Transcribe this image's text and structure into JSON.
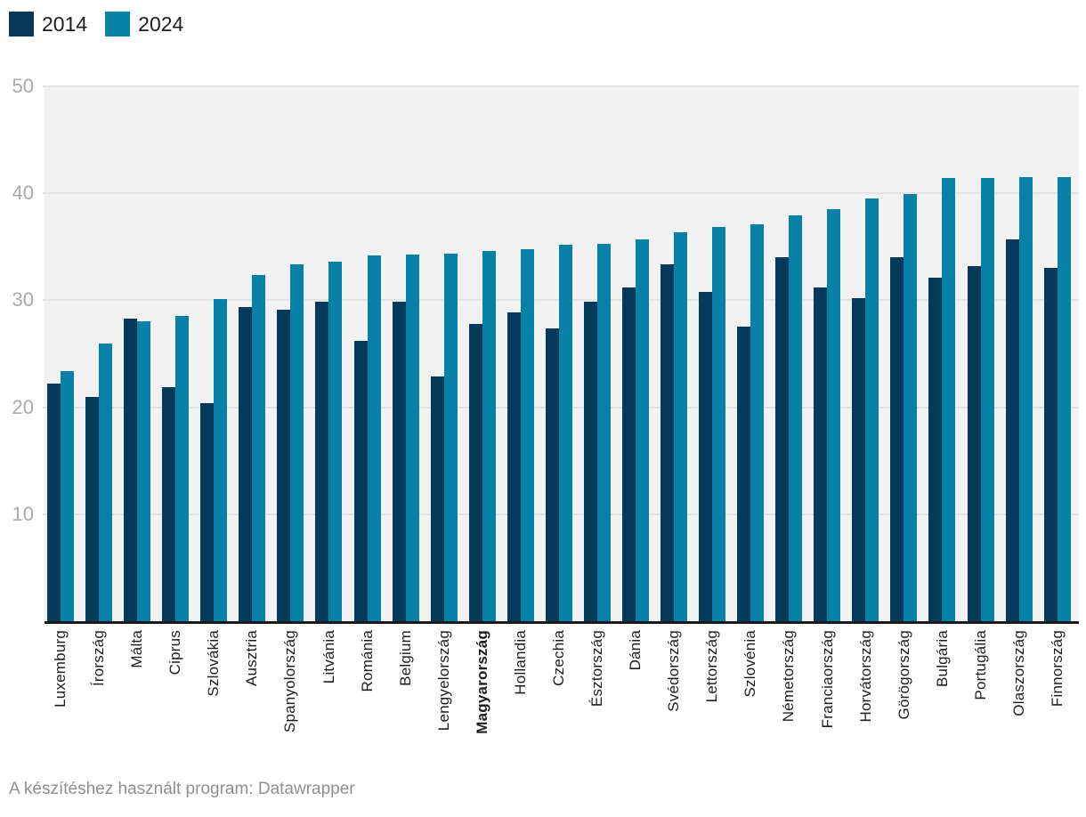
{
  "chart_data": {
    "type": "bar",
    "title": "",
    "xlabel": "",
    "ylabel": "",
    "ylim": [
      0,
      50
    ],
    "yticks": [
      10,
      20,
      30,
      40,
      50
    ],
    "grid": true,
    "legend_position": "top-left",
    "highlighted_category": "Magyarország",
    "categories": [
      "Luxemburg",
      "Írország",
      "Málta",
      "Ciprus",
      "Szlovákia",
      "Ausztria",
      "Spanyolország",
      "Litvánia",
      "Románia",
      "Belgium",
      "Lengyelország",
      "Magyarország",
      "Hollandia",
      "Czechia",
      "Észtország",
      "Dánia",
      "Svédország",
      "Lettország",
      "Szlovénia",
      "Németország",
      "Franciaország",
      "Horvátország",
      "Görögország",
      "Bulgária",
      "Portugália",
      "Olaszország",
      "Finnország"
    ],
    "series": [
      {
        "name": "2014",
        "color": "#063a5b",
        "values": [
          22.2,
          21.0,
          28.3,
          21.9,
          20.4,
          29.4,
          29.1,
          29.9,
          26.2,
          29.9,
          22.9,
          27.8,
          28.9,
          27.4,
          29.9,
          31.2,
          33.4,
          30.8,
          27.5,
          34.0,
          31.2,
          30.2,
          34.0,
          32.1,
          33.2,
          35.7,
          33.0
        ]
      },
      {
        "name": "2024",
        "color": "#0781a7",
        "values": [
          23.4,
          26.0,
          28.0,
          28.5,
          30.1,
          32.4,
          33.4,
          33.6,
          34.2,
          34.3,
          34.4,
          34.6,
          34.8,
          35.2,
          35.3,
          35.7,
          36.4,
          36.9,
          37.1,
          37.9,
          38.5,
          39.5,
          39.9,
          41.4,
          41.4,
          41.5,
          41.5
        ]
      }
    ]
  },
  "legend": {
    "items": [
      {
        "label": "2014",
        "color": "#063a5b"
      },
      {
        "label": "2024",
        "color": "#0781a7"
      }
    ]
  },
  "footer": {
    "credit": "A készítéshez használt program: Datawrapper"
  }
}
